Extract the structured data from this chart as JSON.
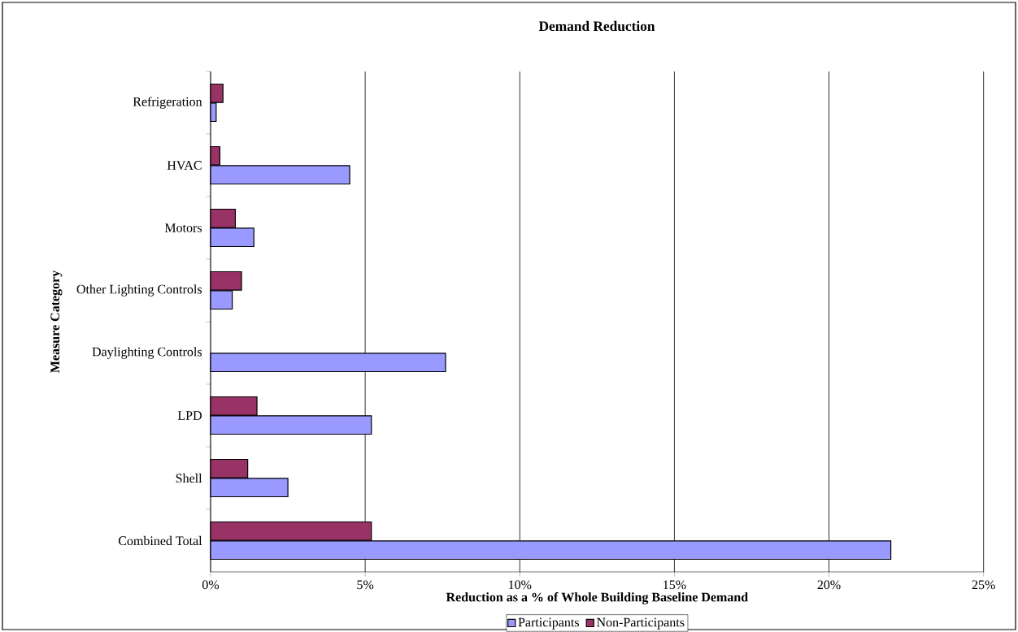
{
  "chart_data": {
    "type": "bar",
    "orientation": "horizontal",
    "title": "Demand Reduction",
    "xlabel": "Reduction as a % of Whole Building Baseline Demand",
    "ylabel": "Measure Category",
    "categories": [
      "Refrigeration",
      "HVAC",
      "Motors",
      "Other Lighting Controls",
      "Daylighting Controls",
      "LPD",
      "Shell",
      "Combined Total"
    ],
    "series": [
      {
        "name": "Participants",
        "color": "#9999ff",
        "values": [
          0.18,
          4.5,
          1.4,
          0.7,
          7.6,
          5.2,
          2.5,
          22.0
        ]
      },
      {
        "name": "Non-Participants",
        "color": "#993366",
        "values": [
          0.4,
          0.3,
          0.8,
          1.0,
          null,
          1.5,
          1.2,
          5.2
        ]
      }
    ],
    "xlim": [
      0,
      25
    ],
    "xticks": [
      {
        "value": 0,
        "label": "0%"
      },
      {
        "value": 5,
        "label": "5%"
      },
      {
        "value": 10,
        "label": "10%"
      },
      {
        "value": 15,
        "label": "15%"
      },
      {
        "value": 20,
        "label": "20%"
      },
      {
        "value": 25,
        "label": "25%"
      }
    ],
    "grid": "x",
    "legend": "bottom"
  }
}
